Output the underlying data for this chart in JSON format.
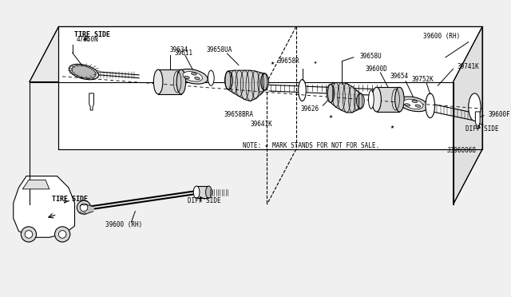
{
  "bg_color": "#f0f0f0",
  "border_color": "#000000",
  "line_color": "#000000",
  "part_color": "#d8d8d8",
  "diagram_id": "J3960068",
  "note": "NOTE: ★ MARK STANDS FOR NOT FOR SALE.",
  "labels": {
    "47950N": "47950N",
    "39611": "39611",
    "39634": "39634",
    "39658R": "39658R",
    "39658U": "39658U",
    "39600D": "39600D",
    "39741K": "39741K",
    "39600RH": "39600 (RH)",
    "39654": "39654",
    "39658UA": "39658UA",
    "39626": "39626",
    "39600F": "39600F",
    "39658BRA": "39658BRA",
    "39641K": "39641K",
    "39752K": "39752K",
    "39600RH2": "39600 (RH)"
  }
}
